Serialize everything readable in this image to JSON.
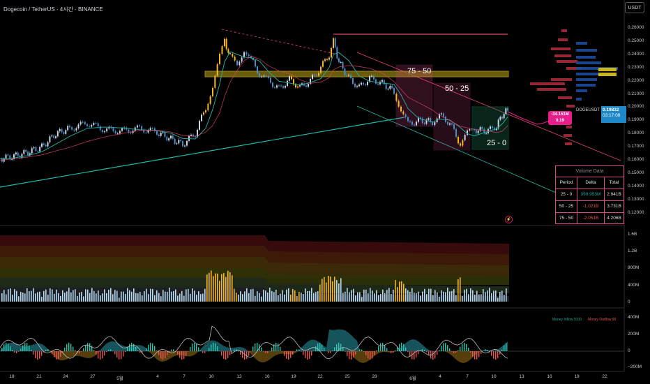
{
  "header": {
    "title": "Dogecoin / TetherUS · 4시간 · BINANCE",
    "currency_button": "USDT"
  },
  "price_axis": {
    "ticks": [
      "0.26000",
      "0.25000",
      "0.24000",
      "0.23000",
      "0.22000",
      "0.21000",
      "0.20000",
      "0.19000",
      "0.18000",
      "0.17000",
      "0.16000",
      "0.15000",
      "0.14000",
      "0.13000",
      "0.12000"
    ],
    "current_symbol": "DOGEUSDT",
    "current_price": "0.19832",
    "countdown": "03:17:08"
  },
  "delta_badge": {
    "value": "-34.151M",
    "price": "0.19"
  },
  "volume_axis": {
    "ticks": [
      "1.6B",
      "1.2B",
      "800M",
      "400M",
      "0"
    ]
  },
  "flow_axis": {
    "ticks": [
      "400M",
      "200M",
      "0",
      "−200M"
    ]
  },
  "time_axis": {
    "ticks": [
      "18",
      "21",
      "24",
      "27",
      "5월",
      "4",
      "7",
      "10",
      "13",
      "16",
      "19",
      "22",
      "25",
      "28",
      "6월",
      "4",
      "7",
      "10",
      "13",
      "16",
      "19",
      "22"
    ]
  },
  "zones": {
    "zone_75_50": "75 - 50",
    "zone_50_25": "50 - 25",
    "zone_25_0": "25 - 0"
  },
  "volume_table": {
    "title": "Volume Data",
    "headers": [
      "Period",
      "Delta",
      "Total"
    ],
    "rows": [
      {
        "period": "25 - 0",
        "delta": "399.953M",
        "total": "2.941B",
        "delta_color": "#26a69a"
      },
      {
        "period": "50 - 25",
        "delta": "-1.021B",
        "total": "3.731B",
        "delta_color": "#ef5350"
      },
      {
        "period": "75 - 50",
        "delta": "-2.051B",
        "total": "4.206B",
        "delta_color": "#ef5350"
      }
    ]
  },
  "flow_legend": {
    "inflow": "Money Inflow 9100",
    "outflow": "Money Outflow 90"
  },
  "colors": {
    "up": "#26a69a",
    "down": "#ef5350",
    "gold": "#f5b623",
    "pink": "#d84a8a",
    "teal_line": "#1fb8a6"
  }
}
